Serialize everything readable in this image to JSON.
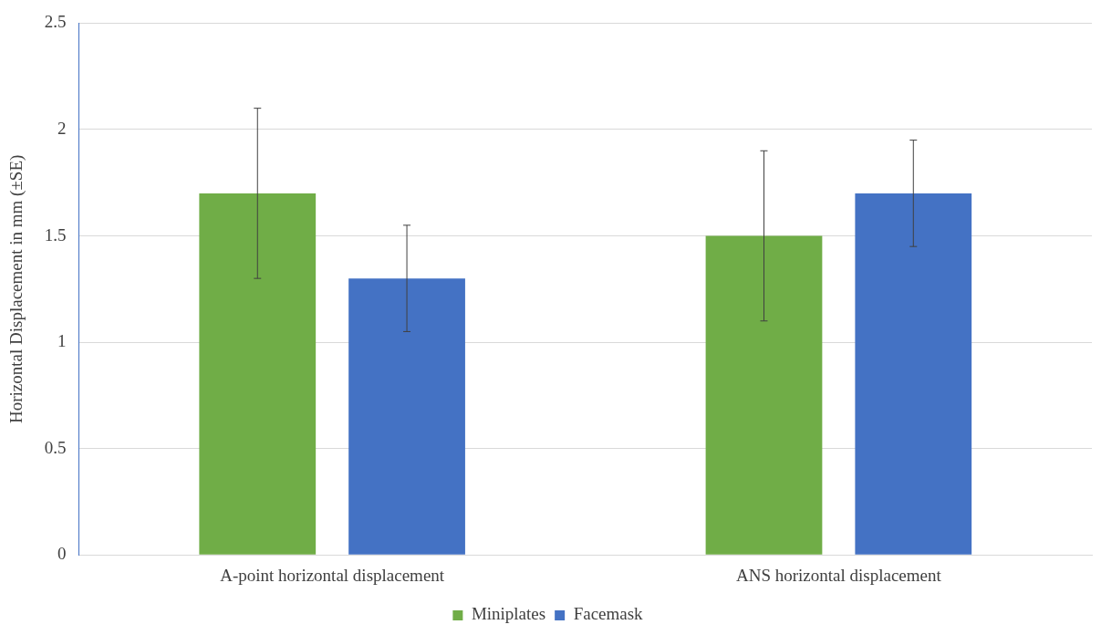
{
  "chart_data": {
    "type": "bar",
    "ylabel": "Horizontal Displacement in mm (±SE)",
    "categories": [
      "A-point horizontal displacement",
      "ANS horizontal displacement"
    ],
    "series": [
      {
        "name": "Miniplates",
        "color": "#70ad47",
        "values": [
          1.7,
          1.5
        ],
        "errors": [
          0.4,
          0.4
        ]
      },
      {
        "name": "Facemask",
        "color": "#4472c4",
        "values": [
          1.3,
          1.7
        ],
        "errors": [
          0.25,
          0.25
        ]
      }
    ],
    "ylim": [
      0,
      2.5
    ],
    "yticks": [
      0,
      0.5,
      1,
      1.5,
      2,
      2.5
    ],
    "grid": "y",
    "legend": "bottom"
  }
}
